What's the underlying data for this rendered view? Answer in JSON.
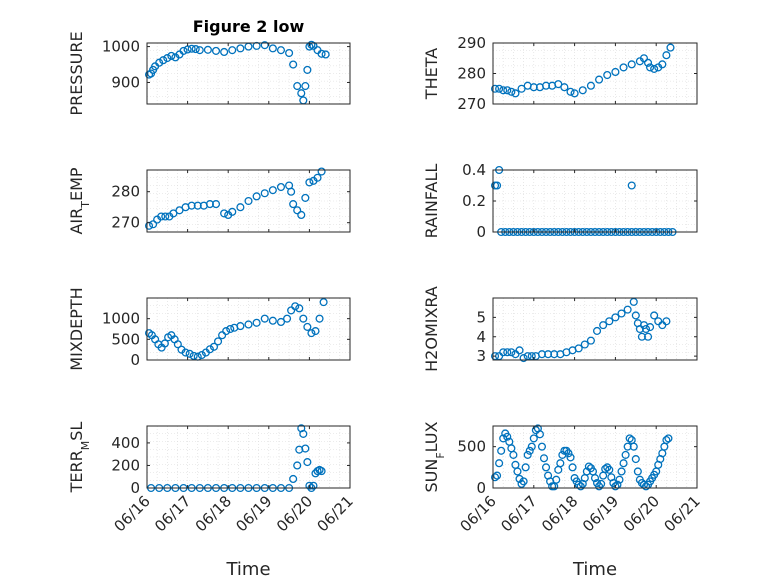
{
  "chart_data": [
    {
      "type": "scatter",
      "title": "Figure 2 low",
      "ylabel": "PRESSURE",
      "xlim": [
        "06/16",
        "06/21"
      ],
      "ylim": [
        840,
        1010
      ],
      "yticks": [
        900,
        1000
      ],
      "xticks": [],
      "xticklabels": [],
      "xlabel": "",
      "grid": true,
      "x": [
        0.05,
        0.1,
        0.15,
        0.2,
        0.3,
        0.4,
        0.5,
        0.6,
        0.7,
        0.8,
        0.9,
        1.0,
        1.1,
        1.2,
        1.3,
        1.5,
        1.7,
        1.9,
        2.1,
        2.3,
        2.5,
        2.7,
        2.9,
        3.1,
        3.3,
        3.5,
        3.6,
        3.7,
        3.8,
        3.85,
        3.9,
        3.95,
        4.0,
        4.05,
        4.1,
        4.2,
        4.3,
        4.4
      ],
      "y": [
        922,
        925,
        935,
        945,
        955,
        962,
        968,
        974,
        970,
        978,
        988,
        992,
        994,
        993,
        990,
        991,
        988,
        985,
        990,
        995,
        1000,
        1002,
        1004,
        995,
        990,
        982,
        950,
        890,
        870,
        850,
        890,
        935,
        1000,
        1005,
        1002,
        990,
        980,
        978
      ]
    },
    {
      "type": "scatter",
      "title": "",
      "ylabel": "THETA",
      "xlim": [
        "06/16",
        "06/21"
      ],
      "ylim": [
        270,
        290
      ],
      "yticks": [
        270,
        280,
        290
      ],
      "xticks": [],
      "xticklabels": [],
      "xlabel": "",
      "grid": true,
      "x": [
        0.05,
        0.15,
        0.25,
        0.35,
        0.45,
        0.55,
        0.7,
        0.85,
        1.0,
        1.15,
        1.3,
        1.45,
        1.6,
        1.75,
        1.9,
        2.0,
        2.2,
        2.4,
        2.6,
        2.8,
        3.0,
        3.2,
        3.4,
        3.6,
        3.7,
        3.8,
        3.85,
        3.95,
        4.05,
        4.15,
        4.25,
        4.35
      ],
      "y": [
        275,
        275,
        274.5,
        274.5,
        274,
        273.5,
        275,
        276,
        275.5,
        275.5,
        276,
        276,
        276.5,
        275.5,
        274,
        273.5,
        274.5,
        276,
        278,
        279.5,
        280.5,
        282,
        283,
        284,
        285,
        283.5,
        282,
        281.5,
        282,
        283,
        286,
        288.5
      ]
    },
    {
      "type": "scatter",
      "title": "",
      "ylabel": "AIR_TEMP",
      "xlim": [
        "06/16",
        "06/21"
      ],
      "ylim": [
        267,
        287
      ],
      "yticks": [
        270,
        280
      ],
      "xticks": [],
      "xticklabels": [],
      "xlabel": "",
      "grid": true,
      "x": [
        0.05,
        0.15,
        0.25,
        0.35,
        0.45,
        0.55,
        0.65,
        0.8,
        0.95,
        1.1,
        1.25,
        1.4,
        1.55,
        1.7,
        1.9,
        2.0,
        2.1,
        2.3,
        2.5,
        2.7,
        2.9,
        3.1,
        3.3,
        3.5,
        3.55,
        3.6,
        3.7,
        3.8,
        3.9,
        4.0,
        4.1,
        4.2,
        4.3
      ],
      "y": [
        269,
        269.5,
        271,
        272,
        272,
        272,
        273,
        274,
        275,
        275.5,
        275.5,
        275.5,
        276,
        276,
        273,
        272.5,
        273.5,
        275,
        277,
        278.5,
        279.5,
        280.5,
        281.5,
        282,
        280,
        276,
        274,
        272.5,
        278,
        283,
        283.5,
        284.5,
        286.5
      ]
    },
    {
      "type": "scatter",
      "title": "",
      "ylabel": "RAINFALL",
      "xlim": [
        "06/16",
        "06/21"
      ],
      "ylim": [
        0,
        0.4
      ],
      "yticks": [
        0,
        0.2,
        0.4
      ],
      "xticks": [],
      "xticklabels": [],
      "xlabel": "",
      "grid": true,
      "x": [
        0.05,
        0.1,
        0.15,
        0.2,
        0.3,
        0.4,
        0.5,
        0.6,
        0.7,
        0.8,
        0.9,
        1.0,
        1.1,
        1.2,
        1.3,
        1.4,
        1.5,
        1.6,
        1.7,
        1.8,
        1.9,
        2.0,
        2.1,
        2.2,
        2.3,
        2.4,
        2.5,
        2.6,
        2.7,
        2.8,
        2.9,
        3.0,
        3.1,
        3.2,
        3.3,
        3.4,
        3.5,
        3.6,
        3.7,
        3.8,
        3.9,
        4.0,
        4.1,
        4.2,
        4.3,
        4.4,
        3.4
      ],
      "y": [
        0.3,
        0.3,
        0.4,
        0,
        0,
        0,
        0,
        0,
        0,
        0,
        0,
        0,
        0,
        0,
        0,
        0,
        0,
        0,
        0,
        0,
        0,
        0,
        0,
        0,
        0,
        0,
        0,
        0,
        0,
        0,
        0,
        0,
        0,
        0,
        0,
        0,
        0,
        0,
        0,
        0,
        0,
        0,
        0,
        0,
        0,
        0,
        0.3
      ]
    },
    {
      "type": "scatter",
      "title": "",
      "ylabel": "MIXDEPTH",
      "xlim": [
        "06/16",
        "06/21"
      ],
      "ylim": [
        0,
        1500
      ],
      "yticks": [
        0,
        500,
        1000
      ],
      "xticks": [],
      "xticklabels": [],
      "xlabel": "",
      "grid": true,
      "x": [
        0.05,
        0.12,
        0.2,
        0.28,
        0.36,
        0.44,
        0.52,
        0.6,
        0.68,
        0.76,
        0.85,
        0.95,
        1.05,
        1.15,
        1.25,
        1.35,
        1.45,
        1.55,
        1.65,
        1.75,
        1.85,
        1.95,
        2.05,
        2.15,
        2.3,
        2.5,
        2.7,
        2.9,
        3.1,
        3.3,
        3.45,
        3.55,
        3.65,
        3.75,
        3.85,
        3.95,
        4.05,
        4.15,
        4.25,
        4.35
      ],
      "y": [
        650,
        600,
        500,
        380,
        300,
        400,
        550,
        600,
        500,
        380,
        250,
        180,
        150,
        100,
        80,
        120,
        180,
        260,
        320,
        450,
        600,
        700,
        750,
        780,
        820,
        860,
        900,
        1000,
        950,
        920,
        1000,
        1200,
        1300,
        1250,
        1000,
        800,
        650,
        700,
        1000,
        1400
      ]
    },
    {
      "type": "scatter",
      "title": "",
      "ylabel": "H2OMIXRA",
      "xlim": [
        "06/16",
        "06/21"
      ],
      "ylim": [
        2.8,
        6
      ],
      "yticks": [
        3,
        4,
        5
      ],
      "xticks": [],
      "xticklabels": [],
      "xlabel": "",
      "grid": true,
      "x": [
        0.05,
        0.15,
        0.25,
        0.35,
        0.45,
        0.55,
        0.65,
        0.75,
        0.85,
        0.95,
        1.05,
        1.2,
        1.35,
        1.5,
        1.65,
        1.8,
        1.95,
        2.1,
        2.25,
        2.4,
        2.55,
        2.7,
        2.85,
        3.0,
        3.15,
        3.3,
        3.45,
        3.5,
        3.55,
        3.6,
        3.65,
        3.7,
        3.75,
        3.8,
        3.85,
        3.95,
        4.05,
        4.15,
        4.25
      ],
      "y": [
        3,
        3,
        3.2,
        3.2,
        3.2,
        3.1,
        3.3,
        2.9,
        3,
        3,
        3,
        3.1,
        3.1,
        3.1,
        3.1,
        3.2,
        3.3,
        3.4,
        3.6,
        3.8,
        4.3,
        4.6,
        4.8,
        5,
        5.2,
        5.4,
        5.8,
        5.1,
        4.7,
        4.4,
        4,
        4.6,
        4.4,
        4,
        4.5,
        5.1,
        4.8,
        4.6,
        4.8
      ]
    },
    {
      "type": "scatter",
      "title": "",
      "ylabel": "TERR_MSL",
      "xlim": [
        "06/16",
        "06/21"
      ],
      "ylim": [
        0,
        550
      ],
      "yticks": [
        0,
        200,
        400
      ],
      "xticks": [
        "06/16",
        "06/17",
        "06/18",
        "06/19",
        "06/20",
        "06/21"
      ],
      "xticklabels": [
        "06/16",
        "06/17",
        "06/18",
        "06/19",
        "06/20",
        "06/21"
      ],
      "xlabel": "Time",
      "grid": true,
      "x": [
        0.1,
        0.3,
        0.5,
        0.7,
        0.9,
        1.1,
        1.3,
        1.5,
        1.7,
        1.9,
        2.1,
        2.3,
        2.5,
        2.7,
        2.9,
        3.1,
        3.3,
        3.5,
        3.6,
        3.7,
        3.75,
        3.8,
        3.85,
        3.9,
        3.95,
        4.0,
        4.05,
        4.1,
        4.15,
        4.2,
        4.25,
        4.3
      ],
      "y": [
        0,
        0,
        0,
        0,
        0,
        0,
        0,
        0,
        0,
        0,
        0,
        0,
        0,
        0,
        0,
        0,
        0,
        0,
        80,
        200,
        340,
        530,
        480,
        350,
        230,
        20,
        0,
        20,
        130,
        150,
        160,
        150
      ]
    },
    {
      "type": "scatter",
      "title": "",
      "ylabel": "SUN_FLUX",
      "xlim": [
        "06/16",
        "06/21"
      ],
      "ylim": [
        0,
        750
      ],
      "yticks": [
        0,
        500
      ],
      "xticks": [
        "06/16",
        "06/17",
        "06/18",
        "06/19",
        "06/20",
        "06/21"
      ],
      "xticklabels": [
        "06/16",
        "06/17",
        "06/18",
        "06/19",
        "06/20",
        "06/21"
      ],
      "xlabel": "Time",
      "grid": true,
      "x": [
        0.05,
        0.1,
        0.15,
        0.2,
        0.25,
        0.3,
        0.35,
        0.4,
        0.45,
        0.5,
        0.55,
        0.6,
        0.65,
        0.7,
        0.75,
        0.8,
        0.85,
        0.9,
        0.95,
        1.0,
        1.05,
        1.1,
        1.15,
        1.2,
        1.25,
        1.3,
        1.35,
        1.4,
        1.45,
        1.5,
        1.55,
        1.6,
        1.65,
        1.7,
        1.75,
        1.8,
        1.85,
        1.9,
        1.95,
        2.0,
        2.05,
        2.1,
        2.15,
        2.2,
        2.25,
        2.3,
        2.35,
        2.4,
        2.45,
        2.5,
        2.55,
        2.6,
        2.65,
        2.7,
        2.75,
        2.8,
        2.85,
        2.9,
        2.95,
        3.0,
        3.05,
        3.1,
        3.15,
        3.2,
        3.25,
        3.3,
        3.35,
        3.4,
        3.45,
        3.5,
        3.55,
        3.6,
        3.65,
        3.7,
        3.75,
        3.8,
        3.85,
        3.9,
        3.95,
        4.0,
        4.05,
        4.1,
        4.15,
        4.2,
        4.25,
        4.3
      ],
      "y": [
        130,
        150,
        300,
        450,
        600,
        660,
        620,
        560,
        480,
        400,
        280,
        200,
        110,
        50,
        80,
        250,
        400,
        450,
        500,
        600,
        700,
        720,
        650,
        500,
        360,
        250,
        150,
        80,
        20,
        20,
        100,
        220,
        300,
        400,
        450,
        450,
        420,
        370,
        250,
        120,
        80,
        40,
        20,
        50,
        120,
        200,
        260,
        240,
        200,
        120,
        60,
        20,
        50,
        150,
        230,
        250,
        220,
        130,
        60,
        20,
        40,
        100,
        200,
        300,
        400,
        500,
        600,
        580,
        500,
        350,
        200,
        100,
        60,
        40,
        20,
        40,
        80,
        120,
        160,
        200,
        280,
        350,
        420,
        500,
        580,
        600
      ]
    }
  ]
}
